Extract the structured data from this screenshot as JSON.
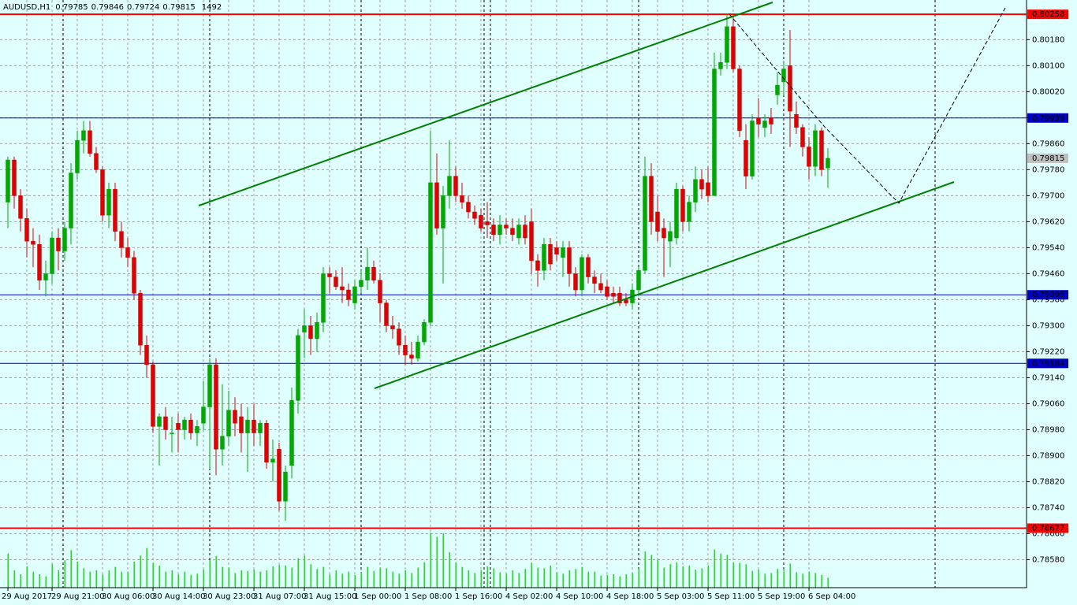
{
  "chart_data": {
    "type": "candlestick",
    "symbol": "AUDUSD,H1",
    "up_color": "#00a800",
    "down_color": "#e00000",
    "volume_color": "#32cd32",
    "grid": true,
    "ylim": [
      0.78494,
      0.80302
    ],
    "yticks": [
      {
        "value": 0.7858,
        "label": "0.78580"
      },
      {
        "value": 0.7866,
        "label": "0.78660"
      },
      {
        "value": 0.7874,
        "label": "0.78740"
      },
      {
        "value": 0.7882,
        "label": "0.78820"
      },
      {
        "value": 0.789,
        "label": "0.78900"
      },
      {
        "value": 0.7898,
        "label": "0.78980"
      },
      {
        "value": 0.7906,
        "label": "0.79060"
      },
      {
        "value": 0.7914,
        "label": "0.79140"
      },
      {
        "value": 0.7922,
        "label": "0.79220"
      },
      {
        "value": 0.793,
        "label": "0.79300"
      },
      {
        "value": 0.7938,
        "label": "0.79380"
      },
      {
        "value": 0.7946,
        "label": "0.79460"
      },
      {
        "value": 0.7954,
        "label": "0.79540"
      },
      {
        "value": 0.7962,
        "label": "0.79620"
      },
      {
        "value": 0.797,
        "label": "0.79700"
      },
      {
        "value": 0.7978,
        "label": "0.79780"
      },
      {
        "value": 0.7986,
        "label": "0.79860"
      },
      {
        "value": 0.7994,
        "label": "0.79940"
      },
      {
        "value": 0.8002,
        "label": "0.80020"
      },
      {
        "value": 0.801,
        "label": "0.80100"
      },
      {
        "value": 0.8018,
        "label": "0.80180"
      }
    ],
    "hlines": [
      {
        "value": 0.80258,
        "color": "#ff0000"
      },
      {
        "value": 0.79939,
        "color": "#0000c8"
      },
      {
        "value": 0.79395,
        "color": "#0000c8"
      },
      {
        "value": 0.79184,
        "color": "#0000c8"
      },
      {
        "value": 0.78677,
        "color": "#ff0000"
      }
    ],
    "categories": [
      "29 Aug 2017",
      null,
      null,
      null,
      null,
      null,
      null,
      "29 Aug 21:00",
      null,
      null,
      null,
      null,
      null,
      null,
      null,
      "30 Aug 06:00",
      null,
      null,
      null,
      null,
      null,
      null,
      null,
      "30 Aug 14:00",
      null,
      null,
      null,
      null,
      null,
      null,
      null,
      "30 Aug 23:00",
      null,
      null,
      null,
      null,
      null,
      null,
      null,
      "31 Aug 07:00",
      null,
      null,
      null,
      null,
      null,
      null,
      null,
      "31 Aug 15:00",
      null,
      null,
      null,
      null,
      null,
      null,
      null,
      "1 Sep 00:00",
      null,
      null,
      null,
      null,
      null,
      null,
      null,
      "1 Sep 08:00",
      null,
      null,
      null,
      null,
      null,
      null,
      null,
      "1 Sep 16:00",
      null,
      null,
      null,
      null,
      null,
      null,
      null,
      "4 Sep 02:00",
      null,
      null,
      null,
      null,
      null,
      null,
      null,
      "4 Sep 10:00",
      null,
      null,
      null,
      null,
      null,
      null,
      null,
      "4 Sep 18:00",
      null,
      null,
      null,
      null,
      null,
      null,
      null,
      "5 Sep 03:00",
      null,
      null,
      null,
      null,
      null,
      null,
      null,
      "5 Sep 11:00",
      null,
      null,
      null,
      null,
      null,
      null,
      null,
      "5 Sep 19:00",
      null,
      null,
      null,
      null,
      null,
      null,
      null,
      "6 Sep 04:00",
      null,
      null,
      null
    ],
    "open": [
      0.7968,
      0.7981,
      0.797,
      0.7963,
      0.7956,
      0.7955,
      0.7944,
      0.7946,
      0.7957,
      0.7953,
      0.796,
      0.7977,
      0.7987,
      0.799,
      0.7983,
      0.7978,
      0.7964,
      0.7972,
      0.7959,
      0.7954,
      0.7951,
      0.794,
      0.7924,
      0.7918,
      0.7899,
      0.7902,
      0.7897,
      0.79,
      0.7898,
      0.7901,
      0.7897,
      0.79,
      0.7905,
      0.7918,
      0.7892,
      0.7896,
      0.7904,
      0.7902,
      0.7897,
      0.7901,
      0.7897,
      0.79,
      0.7888,
      0.7892,
      0.7876,
      0.7887,
      0.7907,
      0.7928,
      0.793,
      0.7926,
      0.7931,
      0.7946,
      0.7945,
      0.7942,
      0.7941,
      0.7937,
      0.7942,
      0.7944,
      0.7948,
      0.7944,
      0.7937,
      0.793,
      0.7929,
      0.7924,
      0.7921,
      0.792,
      0.7925,
      0.7931,
      0.7974,
      0.796,
      0.797,
      0.7976,
      0.797,
      0.7968,
      0.7965,
      0.7964,
      0.7962,
      0.7961,
      0.7958,
      0.7961,
      0.796,
      0.7957,
      0.7961,
      0.7962,
      0.795,
      0.7947,
      0.7955,
      0.7954,
      0.7951,
      0.7954,
      0.7946,
      0.7941,
      0.7951,
      0.7945,
      0.7943,
      0.7942,
      0.794,
      0.794,
      0.7938,
      0.7937,
      0.7941,
      0.7947,
      0.7976,
      0.7965,
      0.796,
      0.7956,
      0.7957,
      0.7972,
      0.7962,
      0.7968,
      0.7975,
      0.7974,
      0.797,
      0.8009,
      0.8011,
      0.8022,
      0.8009,
      0.7987,
      0.7976,
      0.7994,
      0.7991,
      0.7994,
      0.8001,
      0.8005,
      0.801,
      0.7995,
      0.7991,
      0.7985,
      0.7979,
      0.799,
      0.79785
    ],
    "high": [
      0.7982,
      0.7982,
      0.7972,
      0.7966,
      0.796,
      0.7958,
      0.795,
      0.7959,
      0.796,
      0.7962,
      0.798,
      0.799,
      0.7993,
      0.7993,
      0.7985,
      0.7979,
      0.7974,
      0.7974,
      0.7962,
      0.7957,
      0.7953,
      0.7941,
      0.7927,
      0.7919,
      0.7903,
      0.7905,
      0.7902,
      0.7903,
      0.7902,
      0.7903,
      0.7901,
      0.7913,
      0.792,
      0.792,
      0.7912,
      0.791,
      0.7908,
      0.7906,
      0.7905,
      0.7906,
      0.7901,
      0.7901,
      0.7895,
      0.7894,
      0.7887,
      0.7911,
      0.7929,
      0.7935,
      0.7933,
      0.7934,
      0.7948,
      0.7948,
      0.7947,
      0.7948,
      0.7943,
      0.7944,
      0.7947,
      0.7954,
      0.795,
      0.7946,
      0.7938,
      0.7933,
      0.7931,
      0.7927,
      0.7925,
      0.7927,
      0.7932,
      0.799,
      0.7983,
      0.7973,
      0.7987,
      0.7979,
      0.7974,
      0.797,
      0.7967,
      0.7966,
      0.7968,
      0.7963,
      0.7964,
      0.7963,
      0.7963,
      0.7963,
      0.7964,
      0.7966,
      0.7952,
      0.7957,
      0.7957,
      0.7956,
      0.7956,
      0.7956,
      0.7948,
      0.7952,
      0.7952,
      0.7947,
      0.7946,
      0.7944,
      0.7942,
      0.7942,
      0.794,
      0.7943,
      0.7948,
      0.7982,
      0.798,
      0.797,
      0.7963,
      0.7962,
      0.7974,
      0.7973,
      0.797,
      0.7979,
      0.7978,
      0.7979,
      0.8014,
      0.8014,
      0.8026,
      0.8025,
      0.801,
      0.7992,
      0.7995,
      0.8,
      0.7995,
      0.7997,
      0.8008,
      0.8011,
      0.8021,
      0.7999,
      0.7992,
      0.7988,
      0.7992,
      0.7991,
      0.79846
    ],
    "low": [
      0.796,
      0.7966,
      0.7959,
      0.7951,
      0.7948,
      0.7941,
      0.7939,
      0.7943,
      0.7947,
      0.795,
      0.7955,
      0.7975,
      0.7983,
      0.7982,
      0.7977,
      0.7962,
      0.796,
      0.7956,
      0.7951,
      0.7948,
      0.7938,
      0.7921,
      0.7914,
      0.7897,
      0.7887,
      0.7895,
      0.7891,
      0.7891,
      0.7895,
      0.7895,
      0.7893,
      0.7898,
      0.7886,
      0.7884,
      0.7887,
      0.7893,
      0.7896,
      0.7891,
      0.7885,
      0.7893,
      0.7893,
      0.7886,
      0.7882,
      0.7873,
      0.787,
      0.7883,
      0.7903,
      0.792,
      0.7921,
      0.7922,
      0.7928,
      0.794,
      0.7941,
      0.7937,
      0.7936,
      0.7935,
      0.794,
      0.7941,
      0.7943,
      0.7931,
      0.7928,
      0.7926,
      0.7921,
      0.7918,
      0.7918,
      0.7919,
      0.7924,
      0.793,
      0.7958,
      0.7943,
      0.7966,
      0.7968,
      0.7966,
      0.7963,
      0.7961,
      0.7959,
      0.7957,
      0.7956,
      0.7955,
      0.7958,
      0.7956,
      0.7955,
      0.7955,
      0.7946,
      0.7942,
      0.7944,
      0.7947,
      0.795,
      0.7945,
      0.7942,
      0.7939,
      0.7939,
      0.7943,
      0.794,
      0.794,
      0.7938,
      0.7937,
      0.7936,
      0.7936,
      0.7935,
      0.7939,
      0.7946,
      0.7958,
      0.7956,
      0.7945,
      0.7948,
      0.7955,
      0.7959,
      0.7959,
      0.7965,
      0.7969,
      0.7968,
      0.797,
      0.8007,
      0.8009,
      0.8008,
      0.7988,
      0.7972,
      0.7975,
      0.7988,
      0.7988,
      0.7989,
      0.7998,
      0.8001,
      0.7985,
      0.7989,
      0.7982,
      0.7975,
      0.7976,
      0.7976,
      0.79724
    ],
    "close": [
      0.7981,
      0.797,
      0.7963,
      0.7956,
      0.7955,
      0.7944,
      0.7946,
      0.7957,
      0.7953,
      0.796,
      0.7977,
      0.7987,
      0.799,
      0.7983,
      0.7978,
      0.7964,
      0.7972,
      0.7959,
      0.7954,
      0.7951,
      0.794,
      0.7924,
      0.7918,
      0.7899,
      0.7902,
      0.7898,
      0.7897,
      0.7898,
      0.7901,
      0.7897,
      0.7899,
      0.7905,
      0.7918,
      0.7892,
      0.7896,
      0.7904,
      0.79,
      0.7897,
      0.7901,
      0.7897,
      0.79,
      0.7888,
      0.7889,
      0.7876,
      0.7885,
      0.7907,
      0.7927,
      0.793,
      0.7926,
      0.7931,
      0.7946,
      0.7945,
      0.7942,
      0.7941,
      0.7938,
      0.7942,
      0.7944,
      0.7948,
      0.7944,
      0.7937,
      0.793,
      0.7929,
      0.7924,
      0.7921,
      0.792,
      0.7925,
      0.7931,
      0.7974,
      0.796,
      0.797,
      0.7976,
      0.797,
      0.7968,
      0.7965,
      0.7963,
      0.796,
      0.7961,
      0.7958,
      0.7961,
      0.796,
      0.7958,
      0.7961,
      0.7957,
      0.795,
      0.7947,
      0.7955,
      0.7949,
      0.7952,
      0.7954,
      0.7946,
      0.7941,
      0.7951,
      0.7945,
      0.7943,
      0.7941,
      0.7939,
      0.7939,
      0.7937,
      0.7937,
      0.7941,
      0.7947,
      0.7976,
      0.7962,
      0.7959,
      0.7957,
      0.7959,
      0.7972,
      0.7962,
      0.7968,
      0.7975,
      0.7972,
      0.797,
      0.8009,
      0.8011,
      0.8022,
      0.8009,
      0.799,
      0.7976,
      0.7993,
      0.7992,
      0.7993,
      0.7992,
      0.8004,
      0.8009,
      0.7996,
      0.7991,
      0.7985,
      0.7979,
      0.799,
      0.7978,
      0.79815
    ],
    "volume": [
      5100,
      2600,
      2000,
      3200,
      2400,
      2000,
      1700,
      3500,
      2600,
      4100,
      5600,
      3900,
      2900,
      2400,
      2600,
      2000,
      2600,
      3100,
      2400,
      2400,
      3900,
      4800,
      5900,
      3700,
      3300,
      2400,
      2600,
      2000,
      2400,
      1900,
      2100,
      2700,
      4100,
      4700,
      3100,
      3000,
      2200,
      2600,
      2500,
      2700,
      2400,
      2600,
      3200,
      3400,
      3300,
      3000,
      4400,
      4800,
      3500,
      2800,
      3100,
      2000,
      2600,
      2100,
      2400,
      1900,
      2300,
      3100,
      2500,
      3000,
      2900,
      2400,
      2100,
      2600,
      2200,
      3000,
      3800,
      8200,
      7600,
      8100,
      5300,
      3800,
      3100,
      2600,
      2200,
      2600,
      3200,
      2900,
      2300,
      2100,
      2600,
      2200,
      2800,
      3700,
      3000,
      2900,
      3300,
      2300,
      2100,
      2600,
      2800,
      3100,
      2400,
      2400,
      1800,
      1900,
      2000,
      1700,
      2000,
      2200,
      2800,
      5400,
      4900,
      4200,
      3000,
      3500,
      3800,
      3200,
      3300,
      2700,
      2900,
      3300,
      5700,
      5100,
      4900,
      3800,
      3700,
      3500,
      2500,
      2700,
      2100,
      2200,
      2800,
      2600,
      3600,
      2300,
      2100,
      2400,
      2200,
      1900,
      1492
    ]
  }
}
